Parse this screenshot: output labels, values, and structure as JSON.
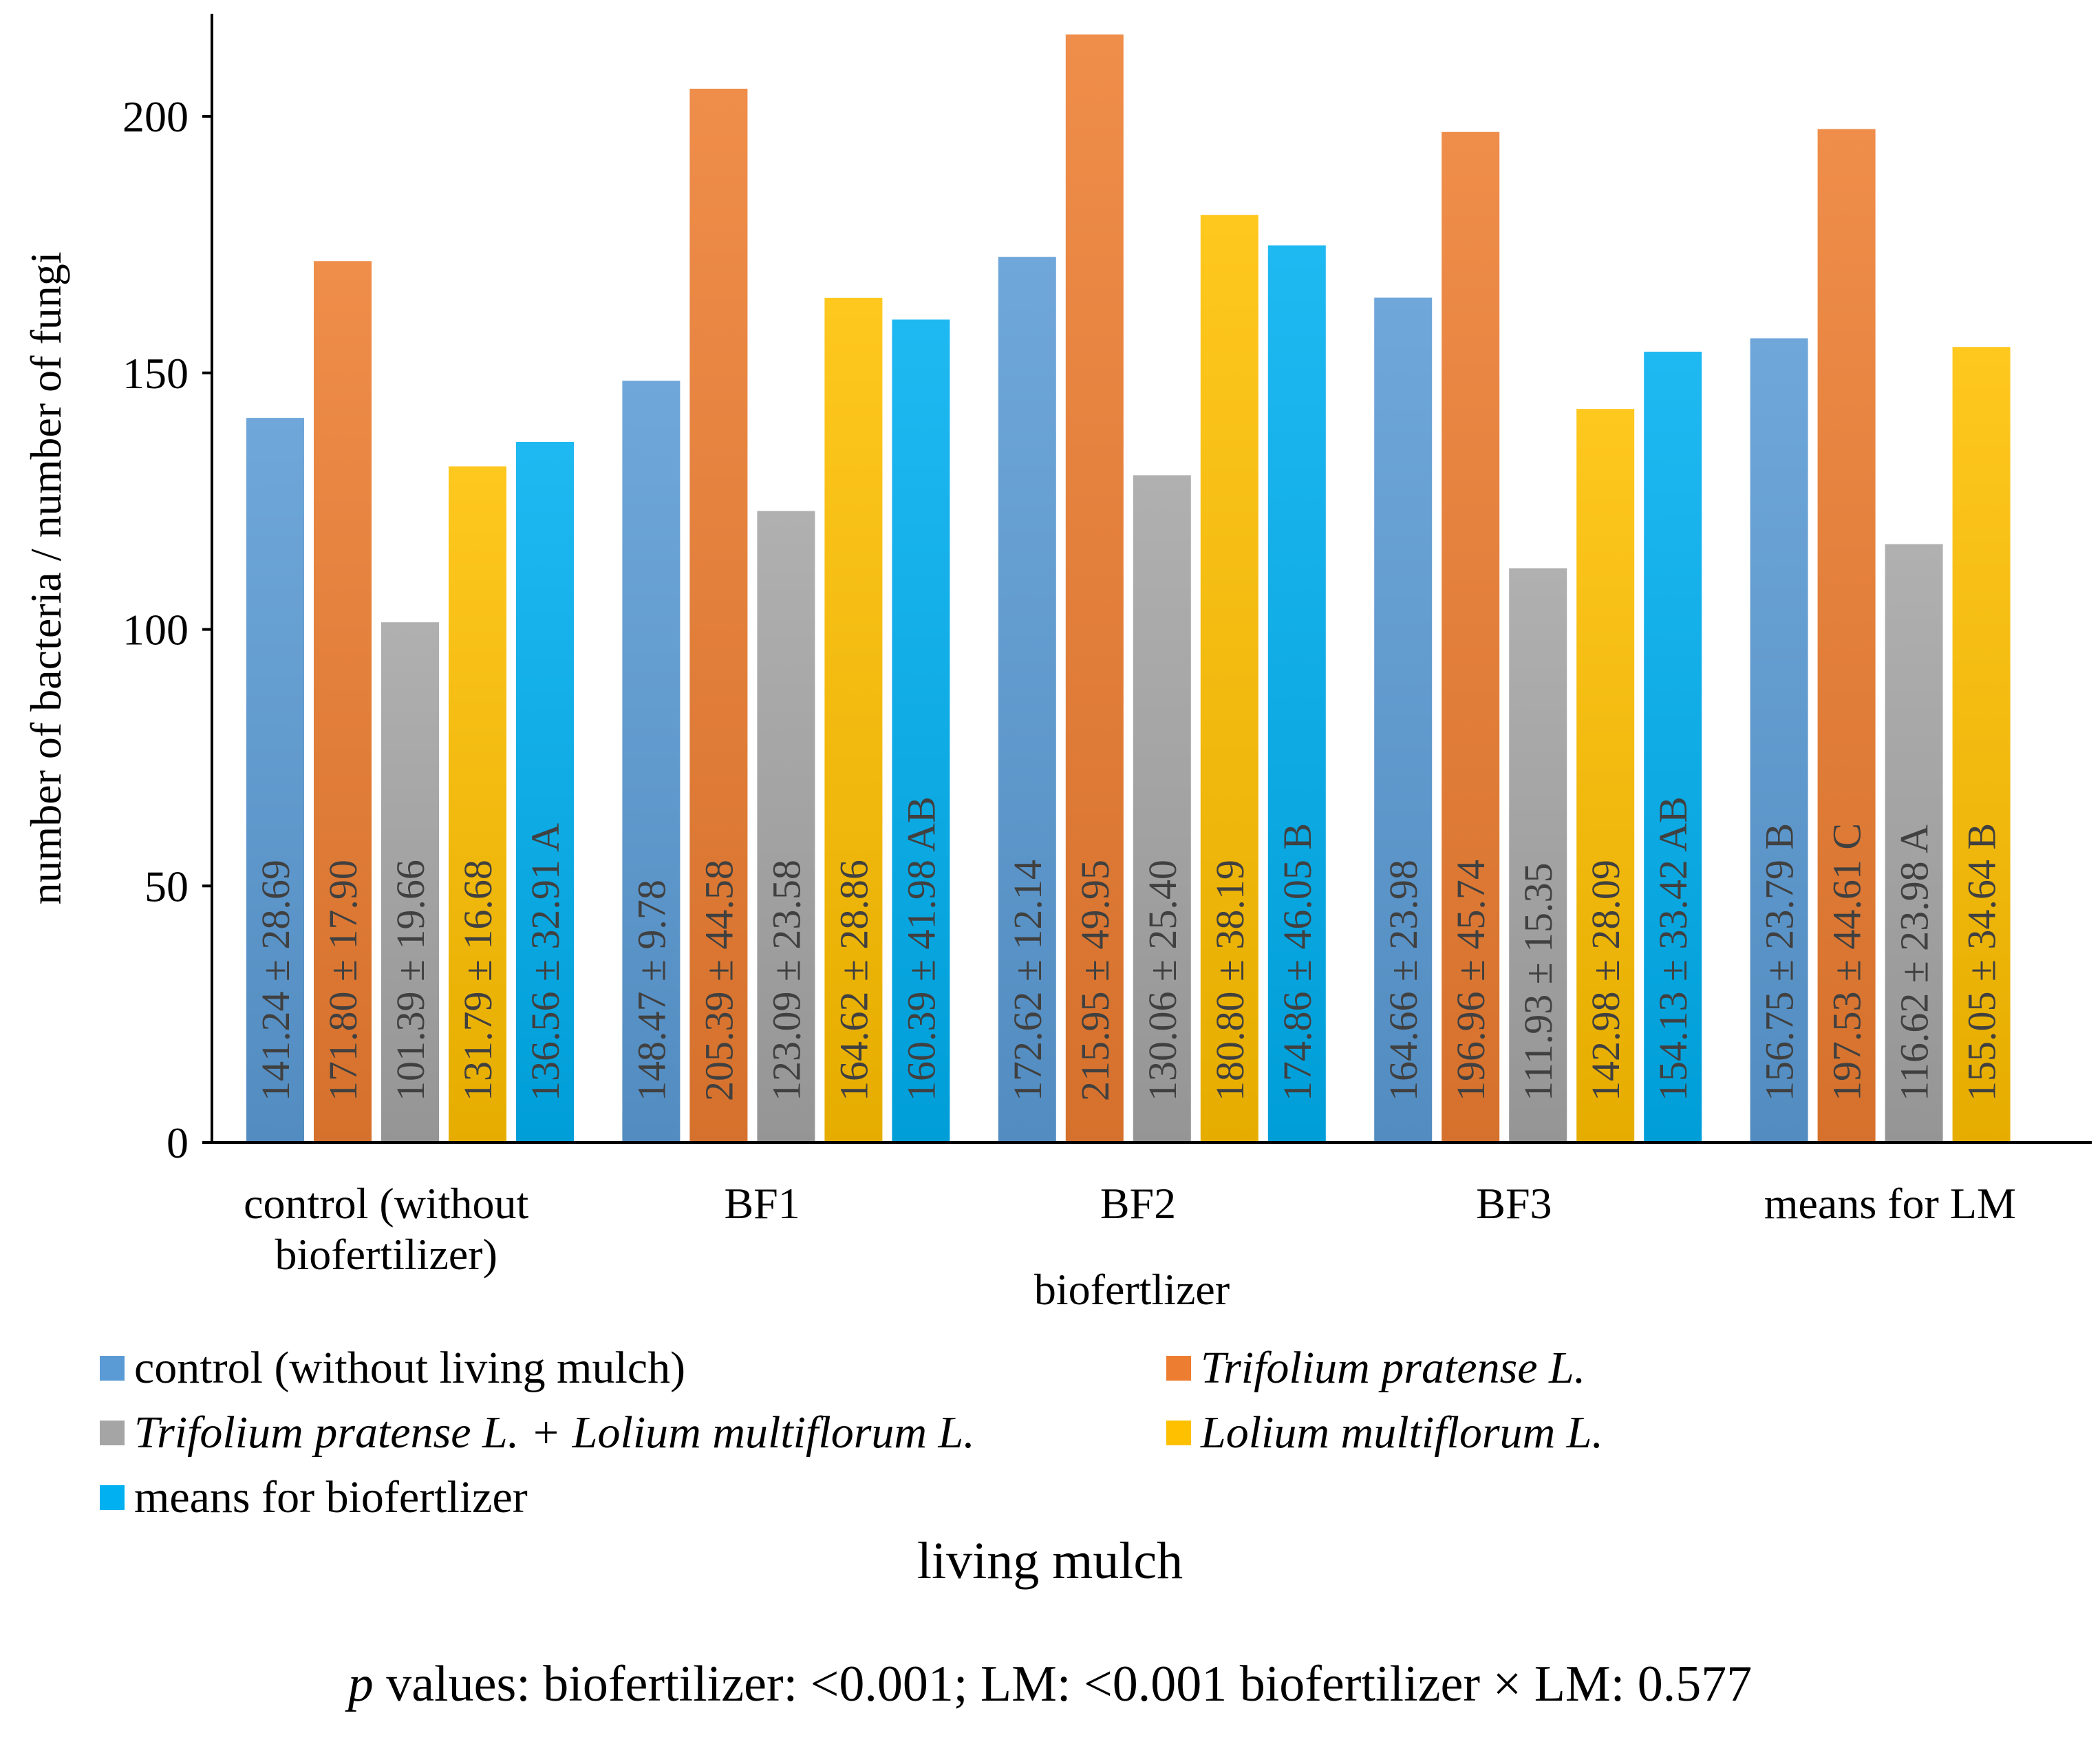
{
  "chart_data": {
    "type": "bar",
    "xlabel": "biofertlizer",
    "ylabel": "number of bacteria / number of fungi",
    "ylim": [
      0,
      220
    ],
    "yticks": [
      "0",
      "50",
      "100",
      "150",
      "200"
    ],
    "grid": false,
    "categories": [
      "control (without biofertilizer)",
      "BF1",
      "BF2",
      "BF3",
      "means for LM"
    ],
    "series": [
      {
        "name": "control (without living mulch)",
        "italic": false,
        "color": "#5b9bd5",
        "values": [
          141.24,
          148.47,
          172.62,
          164.66,
          156.75
        ],
        "labels": [
          "141.24 ± 28.69",
          "148.47 ± 9.78",
          "172.62 ± 12.14",
          "164.66 ± 23.98",
          "156.75 ± 23.79 B"
        ]
      },
      {
        "name": "Trifolium pratense L.",
        "italic": true,
        "color": "#ed7d31",
        "values": [
          171.8,
          205.39,
          215.95,
          196.96,
          197.53
        ],
        "labels": [
          "171.80 ± 17.90",
          "205.39 ± 44.58",
          "215.95 ± 49.95",
          "196.96 ± 45.74",
          "197.53 ± 44.61 C"
        ]
      },
      {
        "name": "Trifolium pratense L. + Lolium multiflorum L.",
        "italic": true,
        "color": "#a5a5a5",
        "values": [
          101.39,
          123.09,
          130.06,
          111.93,
          116.62
        ],
        "labels": [
          "101.39 ± 19.66",
          "123.09 ± 23.58",
          "130.06 ± 25.40",
          "111.93 ± 15.35",
          "116.62 ± 23.98 A"
        ]
      },
      {
        "name": "Lolium multiflorum L.",
        "italic": true,
        "color": "#ffc000",
        "values": [
          131.79,
          164.62,
          180.8,
          142.98,
          155.05
        ],
        "labels": [
          "131.79 ± 16.68",
          "164.62 ± 28.86",
          "180.80 ± 38.19",
          "142.98 ± 28.09",
          "155.05 ± 34.64 B"
        ]
      },
      {
        "name": "means for biofertlizer",
        "italic": false,
        "color": "#00b0f0",
        "values": [
          136.56,
          160.39,
          174.86,
          154.13,
          null
        ],
        "labels": [
          "136.56 ± 32.91 A",
          "160.39 ± 41.98 AB",
          "174.86 ± 46.05 B",
          "154.13 ± 33.42 AB",
          null
        ]
      }
    ]
  },
  "legend": {
    "title": "living mulch",
    "placement": "bottom"
  },
  "footer": {
    "p_symbol": "p",
    "p_text": " values: biofertilizer: <0.001; LM: <0.001 biofertilizer × LM:  0.577"
  }
}
